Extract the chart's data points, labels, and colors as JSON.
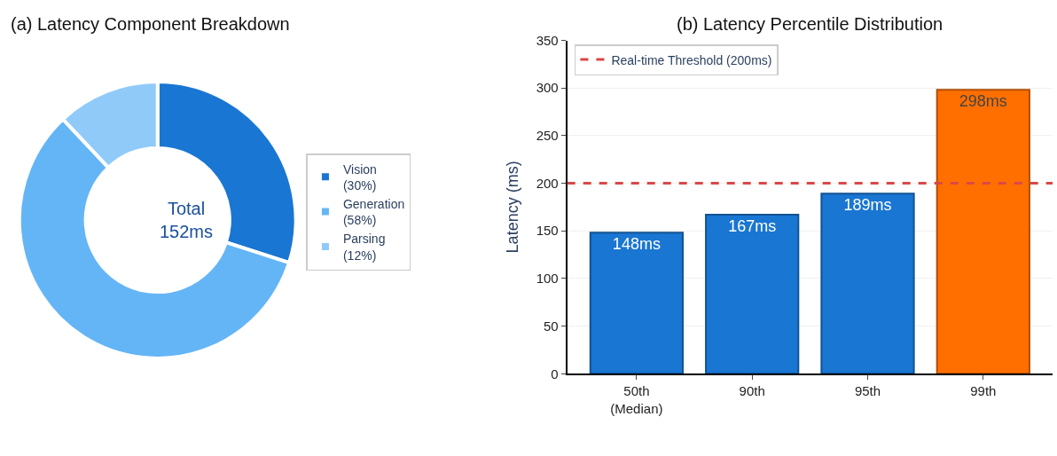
{
  "chart_data": [
    {
      "type": "donut",
      "title": "(a) Latency Component Breakdown",
      "categories": [
        "Vision\n(30%)",
        "Generation\n(58%)",
        "Parsing\n(12%)"
      ],
      "values": [
        30,
        58,
        12
      ],
      "colors": [
        "#1976d2",
        "#64b5f6",
        "#90caf9"
      ],
      "annotations": [
        "Total\n152ms"
      ],
      "legend": "right"
    },
    {
      "type": "bar",
      "title": "(b) Latency Percentile Distribution",
      "ylabel": "Latency (ms)",
      "categories": [
        "50th\n(Median)",
        "90th",
        "95th",
        "99th"
      ],
      "values": [
        148,
        167,
        189,
        298
      ],
      "colors": [
        "#1976d2",
        "#1976d2",
        "#1976d2",
        "#ff6f00"
      ],
      "value_labels": [
        "148ms",
        "167ms",
        "189ms",
        "298ms"
      ],
      "ylim": [
        0,
        350
      ],
      "yticks": [
        0,
        50,
        100,
        150,
        200,
        250,
        300,
        350
      ],
      "grid": "y",
      "ref_lines": [
        {
          "axis": "y",
          "value": 200,
          "label": "Real-time Threshold (200ms)",
          "color": "#d94848",
          "line_style": "dashed"
        }
      ],
      "legend": "top left"
    }
  ]
}
